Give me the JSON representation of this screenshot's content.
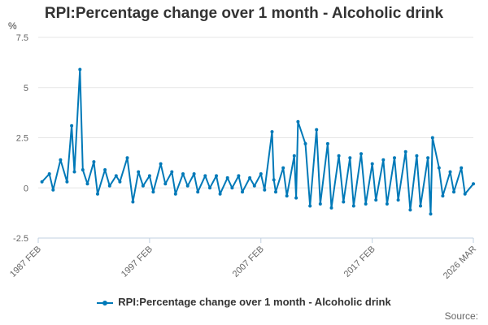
{
  "title": "RPI:Percentage change over 1 month - Alcoholic drink",
  "source_label": "Source:",
  "colors": {
    "series": "#0079b8",
    "grid": "#e6e6e6",
    "axis": "#c0d0e0",
    "text": "#333333"
  },
  "chart_data": {
    "type": "line",
    "title": "RPI:Percentage change over 1 month - Alcoholic drink",
    "ylabel": "%",
    "xlabel": "",
    "ylim": [
      -2.5,
      7.5
    ],
    "yticks": [
      "-2.5",
      "0",
      "2.5",
      "5",
      "7.5"
    ],
    "xticks": [
      "1987 FEB",
      "1997 FEB",
      "2007 FEB",
      "2017 FEB",
      "2026 MAR"
    ],
    "x_range": [
      "1987-02",
      "2026-03"
    ],
    "grid": true,
    "legend_position": "bottom",
    "series": [
      {
        "name": "RPI:Percentage change over 1 month - Alcoholic drink",
        "x": [
          "1987-06",
          "1988-02",
          "1988-06",
          "1989-02",
          "1989-09",
          "1990-02",
          "1990-05",
          "1990-11",
          "1991-02",
          "1991-07",
          "1992-02",
          "1992-06",
          "1993-02",
          "1993-07",
          "1994-02",
          "1994-06",
          "1995-02",
          "1995-08",
          "1996-02",
          "1996-07",
          "1997-02",
          "1997-06",
          "1998-02",
          "1998-07",
          "1999-02",
          "1999-06",
          "2000-02",
          "2000-07",
          "2001-02",
          "2001-06",
          "2002-02",
          "2002-07",
          "2003-02",
          "2003-06",
          "2004-02",
          "2004-07",
          "2005-02",
          "2005-06",
          "2006-02",
          "2006-07",
          "2007-02",
          "2007-06",
          "2008-02",
          "2008-04",
          "2008-06",
          "2009-02",
          "2009-06",
          "2010-02",
          "2010-04",
          "2010-06",
          "2011-02",
          "2011-07",
          "2012-02",
          "2012-06",
          "2013-02",
          "2013-06",
          "2014-02",
          "2014-07",
          "2015-02",
          "2015-06",
          "2016-02",
          "2016-07",
          "2017-02",
          "2017-06",
          "2018-02",
          "2018-06",
          "2019-02",
          "2019-06",
          "2020-02",
          "2020-07",
          "2021-02",
          "2021-06",
          "2022-02",
          "2022-05",
          "2022-07",
          "2023-02",
          "2023-06",
          "2024-02",
          "2024-06",
          "2025-02",
          "2025-06",
          "2026-03"
        ],
        "values": [
          0.3,
          0.7,
          -0.1,
          1.4,
          0.3,
          3.1,
          0.8,
          5.9,
          0.9,
          0.2,
          1.3,
          -0.3,
          0.9,
          0.1,
          0.6,
          0.3,
          1.5,
          -0.7,
          0.8,
          0.1,
          0.6,
          -0.2,
          1.2,
          0.2,
          0.8,
          -0.3,
          0.7,
          0.1,
          0.7,
          -0.2,
          0.6,
          0.0,
          0.6,
          -0.3,
          0.5,
          0.0,
          0.6,
          -0.2,
          0.5,
          0.1,
          0.7,
          -0.1,
          2.8,
          0.4,
          -0.2,
          1.0,
          -0.4,
          1.6,
          -0.5,
          3.3,
          2.2,
          -0.9,
          2.9,
          -0.8,
          2.2,
          -1.0,
          1.6,
          -0.7,
          1.5,
          -0.9,
          1.7,
          -0.8,
          1.2,
          -0.6,
          1.4,
          -0.8,
          1.5,
          -0.6,
          1.8,
          -1.1,
          1.6,
          -0.9,
          1.5,
          -1.3,
          2.5,
          1.0,
          -0.4,
          0.8,
          -0.2,
          1.0,
          -0.3,
          0.2
        ]
      }
    ]
  }
}
